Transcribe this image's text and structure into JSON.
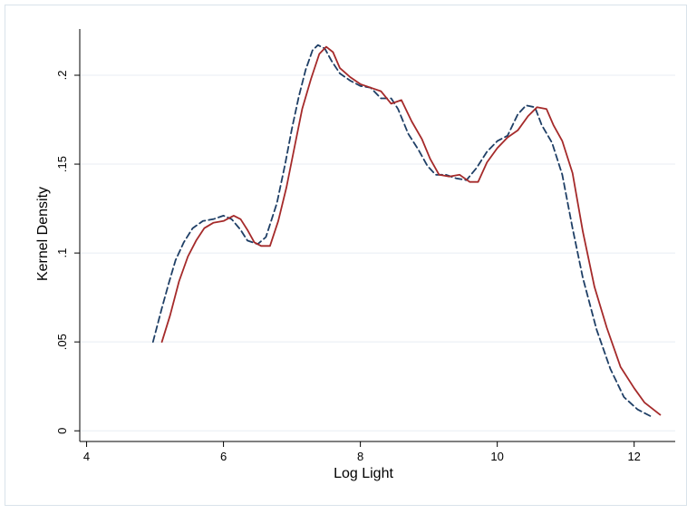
{
  "chart_data": {
    "type": "line",
    "xlabel": "Log Light",
    "ylabel": "Kernel Density",
    "xlim": [
      3.9,
      12.6
    ],
    "ylim": [
      -0.006,
      0.226
    ],
    "x_ticks": [
      4,
      6,
      8,
      10,
      12
    ],
    "x_tick_labels": [
      "4",
      "6",
      "8",
      "10",
      "12"
    ],
    "y_ticks": [
      0,
      0.05,
      0.1,
      0.15,
      0.2
    ],
    "y_tick_labels": [
      "0",
      ".05",
      ".1",
      ".15",
      ".2"
    ],
    "grid": "horizontal",
    "legend": "none",
    "series": [
      {
        "color": "#1f3f66",
        "style": "dashed",
        "points": [
          [
            4.97,
            0.05
          ],
          [
            5.1,
            0.069
          ],
          [
            5.2,
            0.083
          ],
          [
            5.3,
            0.096
          ],
          [
            5.42,
            0.106
          ],
          [
            5.55,
            0.114
          ],
          [
            5.7,
            0.118
          ],
          [
            5.85,
            0.119
          ],
          [
            6.0,
            0.121
          ],
          [
            6.12,
            0.119
          ],
          [
            6.25,
            0.113
          ],
          [
            6.35,
            0.107
          ],
          [
            6.5,
            0.105
          ],
          [
            6.62,
            0.109
          ],
          [
            6.78,
            0.128
          ],
          [
            6.9,
            0.15
          ],
          [
            7.0,
            0.17
          ],
          [
            7.1,
            0.188
          ],
          [
            7.2,
            0.203
          ],
          [
            7.3,
            0.214
          ],
          [
            7.38,
            0.217
          ],
          [
            7.48,
            0.215
          ],
          [
            7.58,
            0.208
          ],
          [
            7.7,
            0.201
          ],
          [
            7.85,
            0.197
          ],
          [
            8.0,
            0.194
          ],
          [
            8.15,
            0.193
          ],
          [
            8.3,
            0.187
          ],
          [
            8.45,
            0.187
          ],
          [
            8.55,
            0.181
          ],
          [
            8.7,
            0.167
          ],
          [
            8.85,
            0.158
          ],
          [
            8.98,
            0.149
          ],
          [
            9.1,
            0.144
          ],
          [
            9.25,
            0.144
          ],
          [
            9.4,
            0.142
          ],
          [
            9.55,
            0.141
          ],
          [
            9.7,
            0.148
          ],
          [
            9.85,
            0.157
          ],
          [
            10.0,
            0.163
          ],
          [
            10.15,
            0.166
          ],
          [
            10.3,
            0.178
          ],
          [
            10.42,
            0.183
          ],
          [
            10.55,
            0.182
          ],
          [
            10.65,
            0.172
          ],
          [
            10.8,
            0.162
          ],
          [
            10.95,
            0.144
          ],
          [
            11.1,
            0.114
          ],
          [
            11.25,
            0.086
          ],
          [
            11.45,
            0.057
          ],
          [
            11.65,
            0.035
          ],
          [
            11.85,
            0.019
          ],
          [
            12.05,
            0.012
          ],
          [
            12.25,
            0.008
          ]
        ]
      },
      {
        "color": "#a52a2a",
        "style": "solid",
        "points": [
          [
            5.1,
            0.05
          ],
          [
            5.22,
            0.065
          ],
          [
            5.35,
            0.084
          ],
          [
            5.48,
            0.098
          ],
          [
            5.6,
            0.107
          ],
          [
            5.72,
            0.114
          ],
          [
            5.85,
            0.117
          ],
          [
            6.0,
            0.118
          ],
          [
            6.15,
            0.121
          ],
          [
            6.25,
            0.119
          ],
          [
            6.35,
            0.113
          ],
          [
            6.45,
            0.106
          ],
          [
            6.55,
            0.104
          ],
          [
            6.68,
            0.104
          ],
          [
            6.8,
            0.118
          ],
          [
            6.92,
            0.137
          ],
          [
            7.05,
            0.162
          ],
          [
            7.15,
            0.181
          ],
          [
            7.28,
            0.198
          ],
          [
            7.4,
            0.212
          ],
          [
            7.5,
            0.216
          ],
          [
            7.6,
            0.213
          ],
          [
            7.7,
            0.204
          ],
          [
            7.85,
            0.199
          ],
          [
            8.0,
            0.195
          ],
          [
            8.15,
            0.193
          ],
          [
            8.3,
            0.191
          ],
          [
            8.45,
            0.184
          ],
          [
            8.6,
            0.186
          ],
          [
            8.75,
            0.174
          ],
          [
            8.9,
            0.164
          ],
          [
            9.02,
            0.153
          ],
          [
            9.15,
            0.144
          ],
          [
            9.3,
            0.143
          ],
          [
            9.45,
            0.144
          ],
          [
            9.6,
            0.14
          ],
          [
            9.72,
            0.14
          ],
          [
            9.85,
            0.151
          ],
          [
            10.0,
            0.159
          ],
          [
            10.15,
            0.165
          ],
          [
            10.3,
            0.169
          ],
          [
            10.45,
            0.177
          ],
          [
            10.58,
            0.182
          ],
          [
            10.72,
            0.181
          ],
          [
            10.82,
            0.172
          ],
          [
            10.95,
            0.163
          ],
          [
            11.1,
            0.145
          ],
          [
            11.25,
            0.112
          ],
          [
            11.42,
            0.081
          ],
          [
            11.6,
            0.058
          ],
          [
            11.8,
            0.036
          ],
          [
            12.0,
            0.024
          ],
          [
            12.15,
            0.016
          ],
          [
            12.38,
            0.009
          ]
        ]
      }
    ]
  }
}
